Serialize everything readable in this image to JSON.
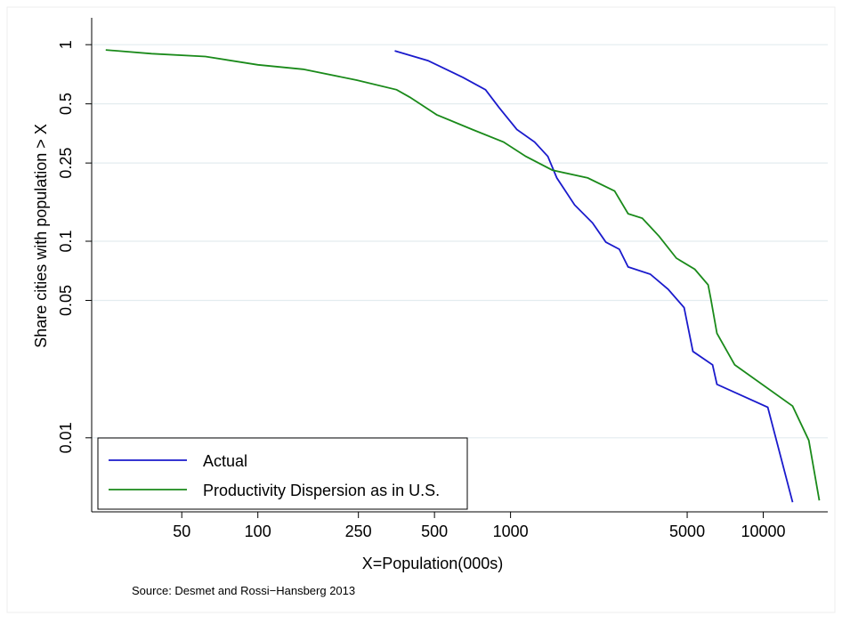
{
  "chart_data": {
    "type": "line",
    "xlabel": "X=Population(000s)",
    "ylabel": "Share cities with population > X",
    "note": "Source: Desmet and Rossi−Hansberg 2013",
    "xscale": "log",
    "yscale": "log",
    "xlim": [
      22,
      18000
    ],
    "ylim": [
      0.0042,
      1.37
    ],
    "xticks": [
      50,
      100,
      250,
      500,
      1000,
      5000,
      10000
    ],
    "yticks": [
      1,
      0.5,
      0.25,
      0.1,
      0.05,
      0.01
    ],
    "grid": true,
    "legend": "lower left",
    "series": [
      {
        "name": "Actual",
        "color": "#1a1acc",
        "x": [
          348,
          471,
          650,
          796,
          899,
          1059,
          1245,
          1405,
          1525,
          1793,
          2110,
          2384,
          2693,
          2918,
          3573,
          4200,
          4860,
          5270,
          6300,
          6560,
          10420,
          13070
        ],
        "y": [
          0.93,
          0.83,
          0.68,
          0.59,
          0.48,
          0.37,
          0.32,
          0.27,
          0.21,
          0.153,
          0.124,
          0.099,
          0.091,
          0.074,
          0.068,
          0.057,
          0.046,
          0.0275,
          0.0235,
          0.0187,
          0.0143,
          0.0047
        ]
      },
      {
        "name": "Productivity Dispersion as in U.S.",
        "color": "#1a8a1a",
        "x": [
          25,
          38,
          62,
          100,
          151,
          246,
          354,
          400,
          510,
          706,
          938,
          1150,
          1463,
          2022,
          2580,
          2918,
          3320,
          3870,
          4530,
          5360,
          6050,
          6200,
          6560,
          7710,
          13070,
          15140,
          16670
        ],
        "y": [
          0.94,
          0.9,
          0.87,
          0.79,
          0.75,
          0.66,
          0.59,
          0.54,
          0.44,
          0.37,
          0.32,
          0.27,
          0.23,
          0.21,
          0.18,
          0.138,
          0.131,
          0.106,
          0.082,
          0.072,
          0.06,
          0.051,
          0.034,
          0.0235,
          0.0145,
          0.0097,
          0.0048
        ]
      }
    ]
  }
}
